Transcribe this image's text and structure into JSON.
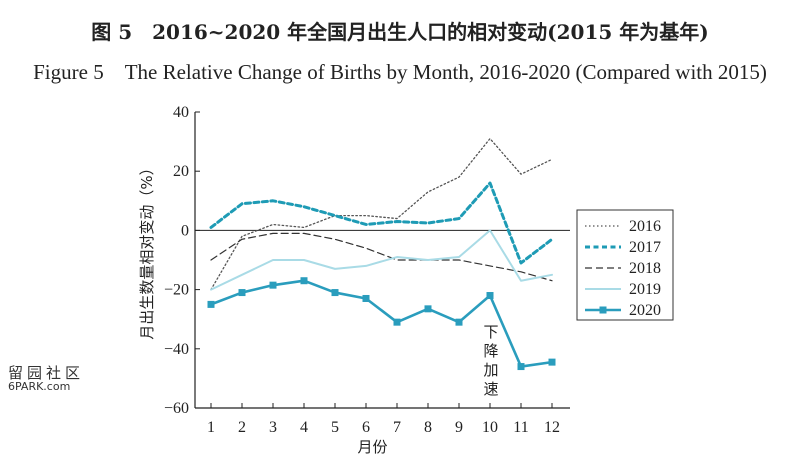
{
  "title_cn": "图 5　2016~2020 年全国月出生人口的相对变动(2015 年为基年)",
  "title_en": "Figure 5　The Relative Change of Births by Month, 2016-2020 (Compared with 2015)",
  "watermark": {
    "line1": "留园社区",
    "line2": "6PARK.com"
  },
  "chart_data": {
    "type": "line",
    "title": "The Relative Change of Births by Month, 2016-2020 (Compared with 2015)",
    "xlabel": "月份",
    "ylabel": "月出生数量相对变动（%）",
    "categories": [
      "1",
      "2",
      "3",
      "4",
      "5",
      "6",
      "7",
      "8",
      "9",
      "10",
      "11",
      "12"
    ],
    "ylim": [
      -60,
      40
    ],
    "yticks": [
      -60,
      -40,
      -20,
      0,
      20,
      40
    ],
    "grid": false,
    "legend_position": "right",
    "series": [
      {
        "name": "2016",
        "style": "dotted",
        "color": "#555555",
        "values": [
          -20,
          -2,
          2,
          1,
          5,
          5,
          4,
          13,
          18,
          31,
          19,
          24
        ]
      },
      {
        "name": "2017",
        "style": "dashed-bold",
        "color": "#1e9bb5",
        "values": [
          1,
          9,
          10,
          8,
          5,
          2,
          3,
          2.5,
          4,
          16,
          -11,
          -3
        ]
      },
      {
        "name": "2018",
        "style": "dashed",
        "color": "#333333",
        "values": [
          -10,
          -3,
          -1,
          -1,
          -3,
          -6,
          -10,
          -10,
          -10,
          -12,
          -14,
          -17
        ]
      },
      {
        "name": "2019",
        "style": "solid-light",
        "color": "#a9dbe6",
        "values": [
          -20,
          -15,
          -10,
          -10,
          -13,
          -12,
          -9,
          -10,
          -9,
          0,
          -17,
          -15
        ]
      },
      {
        "name": "2020",
        "style": "solid-marker",
        "color": "#2a9dbd",
        "values": [
          -25,
          -21,
          -18.5,
          -17,
          -21,
          -23,
          -31,
          -26.5,
          -31,
          -22,
          -46,
          -44.5
        ]
      }
    ],
    "annotation": {
      "text": "下降加速",
      "x": "10"
    }
  }
}
